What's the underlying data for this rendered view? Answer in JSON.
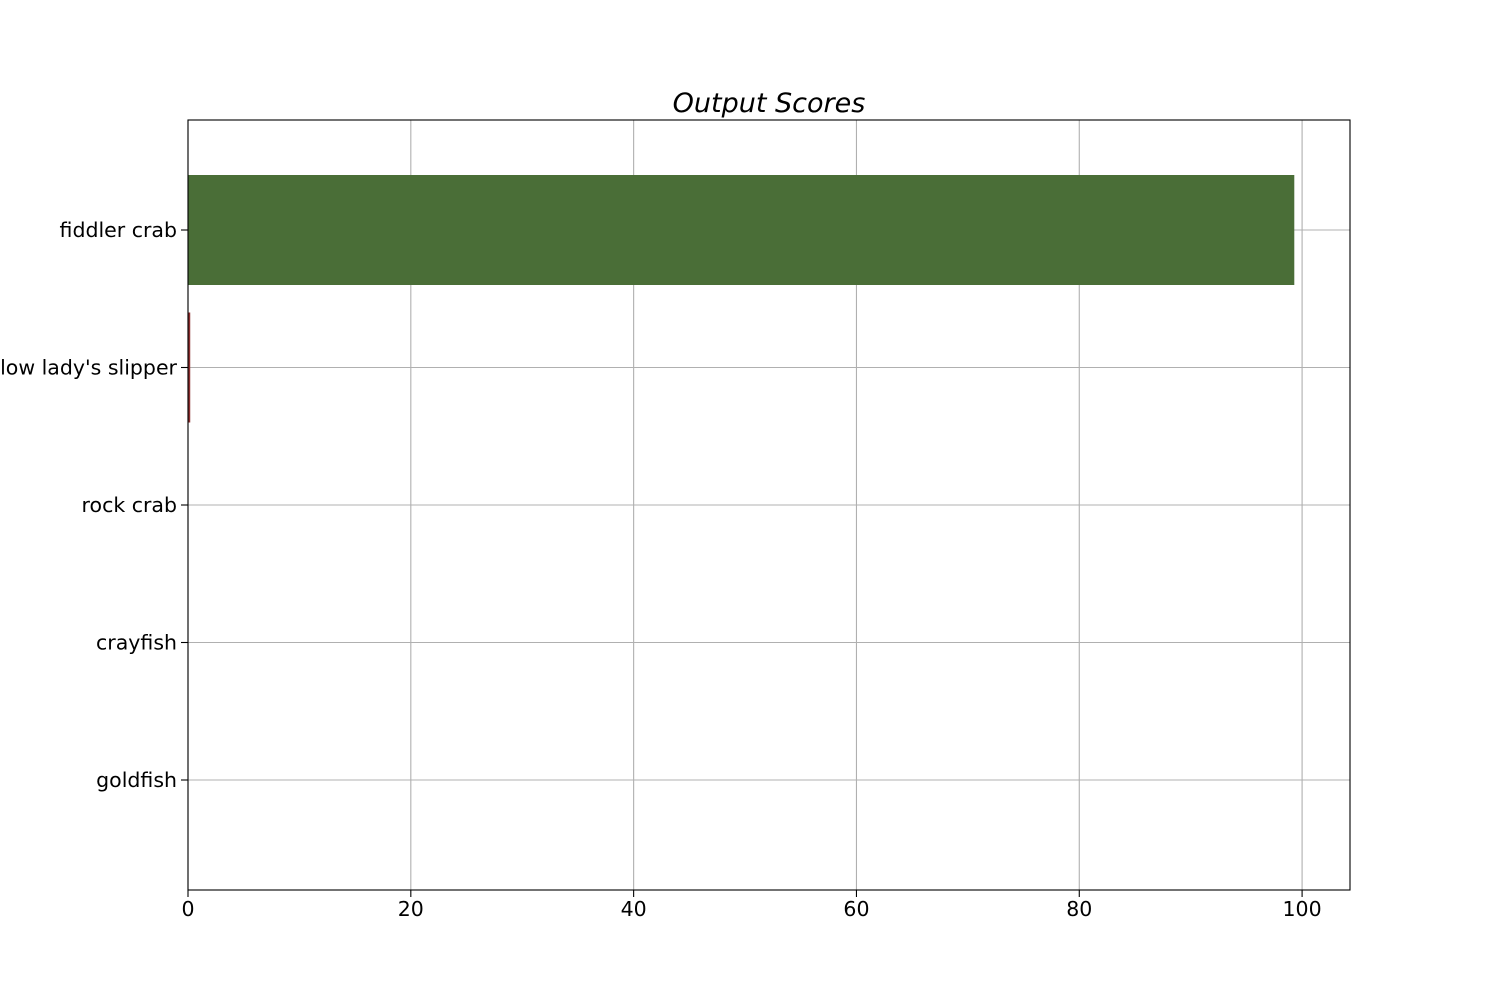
{
  "chart_data": {
    "type": "bar",
    "orientation": "horizontal",
    "title": "Output Scores",
    "xlabel": "",
    "ylabel": "",
    "categories": [
      "fiddler crab",
      "yellow lady's slipper",
      "rock crab",
      "crayfish",
      "goldfish"
    ],
    "values": [
      99.3,
      0.2,
      0.0,
      0.0,
      0.0
    ],
    "bar_colors": [
      "#4a6e37",
      "#8b2e2e",
      "#4a6e37",
      "#4a6e37",
      "#4a6e37"
    ],
    "xlim": [
      0,
      104.3
    ],
    "xticks": [
      0,
      20,
      40,
      60,
      80,
      100
    ],
    "grid": true
  }
}
